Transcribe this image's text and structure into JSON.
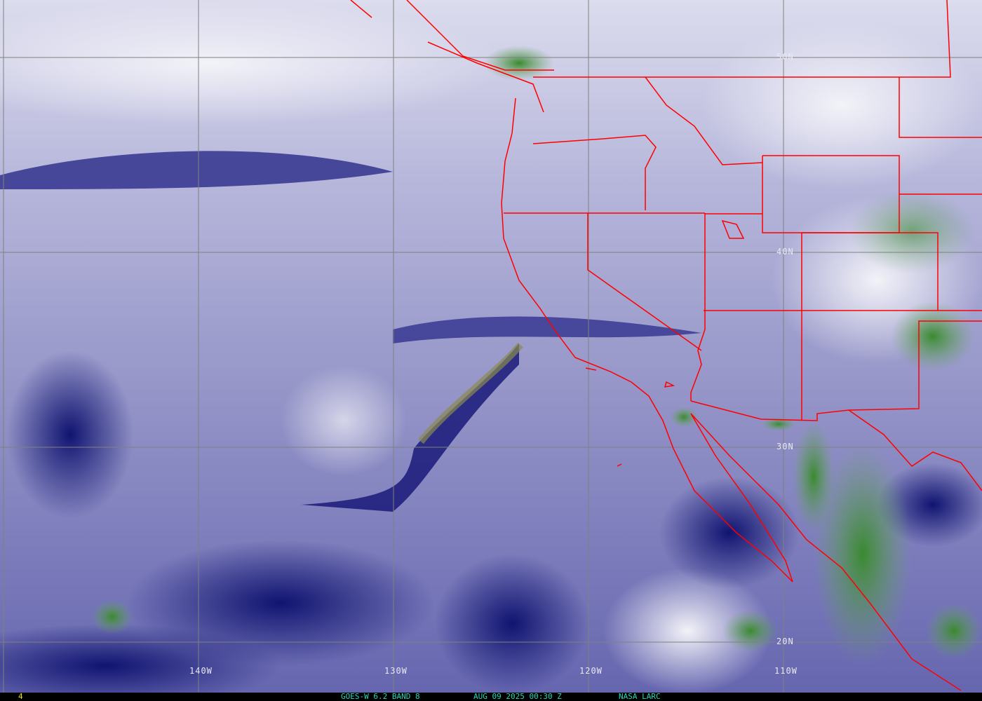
{
  "map": {
    "lon_labels": [
      "140W",
      "130W",
      "120W",
      "110W"
    ],
    "lat_labels": [
      "50N",
      "40N",
      "30N",
      "20N"
    ],
    "border_color": "#ff0000",
    "grid_color": "#808080"
  },
  "footer": {
    "frame_number": "4",
    "product": "GOES-W 6.2 BAND 8",
    "datetime": "AUG 09 2025 00:30 Z",
    "source": "NASA LARC",
    "text_color": "#20d8b8",
    "frame_color": "#e8e000"
  }
}
